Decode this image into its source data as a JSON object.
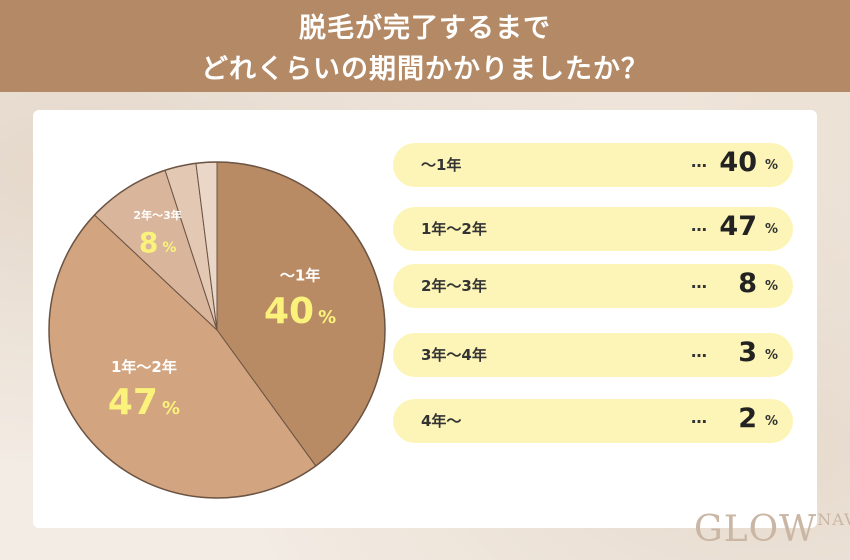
{
  "title": {
    "line1": "脱毛が完了するまで",
    "line2": "どれくらいの期間かかりましたか？"
  },
  "chart_data": {
    "type": "pie",
    "categories": [
      "～1年",
      "1年～2年",
      "2年～3年",
      "3年～4年",
      "4年～"
    ],
    "values": [
      40,
      47,
      8,
      3,
      2
    ],
    "unit": "%",
    "slice_labels": [
      {
        "name": "～1年",
        "value": "40",
        "unit": "%"
      },
      {
        "name": "1年～2年",
        "value": "47",
        "unit": "%"
      },
      {
        "name": "2年～3年",
        "value": "8",
        "unit": "%"
      }
    ]
  },
  "colors": {
    "header": "#b48a66",
    "slices": [
      "#b98b64",
      "#d2a47f",
      "#d8b59b",
      "#e3c8b4",
      "#ebd7c8"
    ],
    "slice_text": "#ffffff",
    "slice_value": "#fbf27b",
    "pill": "#fdf5b7"
  },
  "legend": [
    {
      "label": "～1年",
      "dots": "…",
      "value": "40",
      "unit": "%"
    },
    {
      "label": "1年～2年",
      "dots": "…",
      "value": "47",
      "unit": "%"
    },
    {
      "label": "2年～3年",
      "dots": "…",
      "value": "8",
      "unit": "%"
    },
    {
      "label": "3年～4年",
      "dots": "…",
      "value": "3",
      "unit": "%"
    },
    {
      "label": "4年～",
      "dots": "…",
      "value": "2",
      "unit": "%"
    }
  ],
  "logo": {
    "main": "GLOW",
    "sub": "NAVI"
  }
}
